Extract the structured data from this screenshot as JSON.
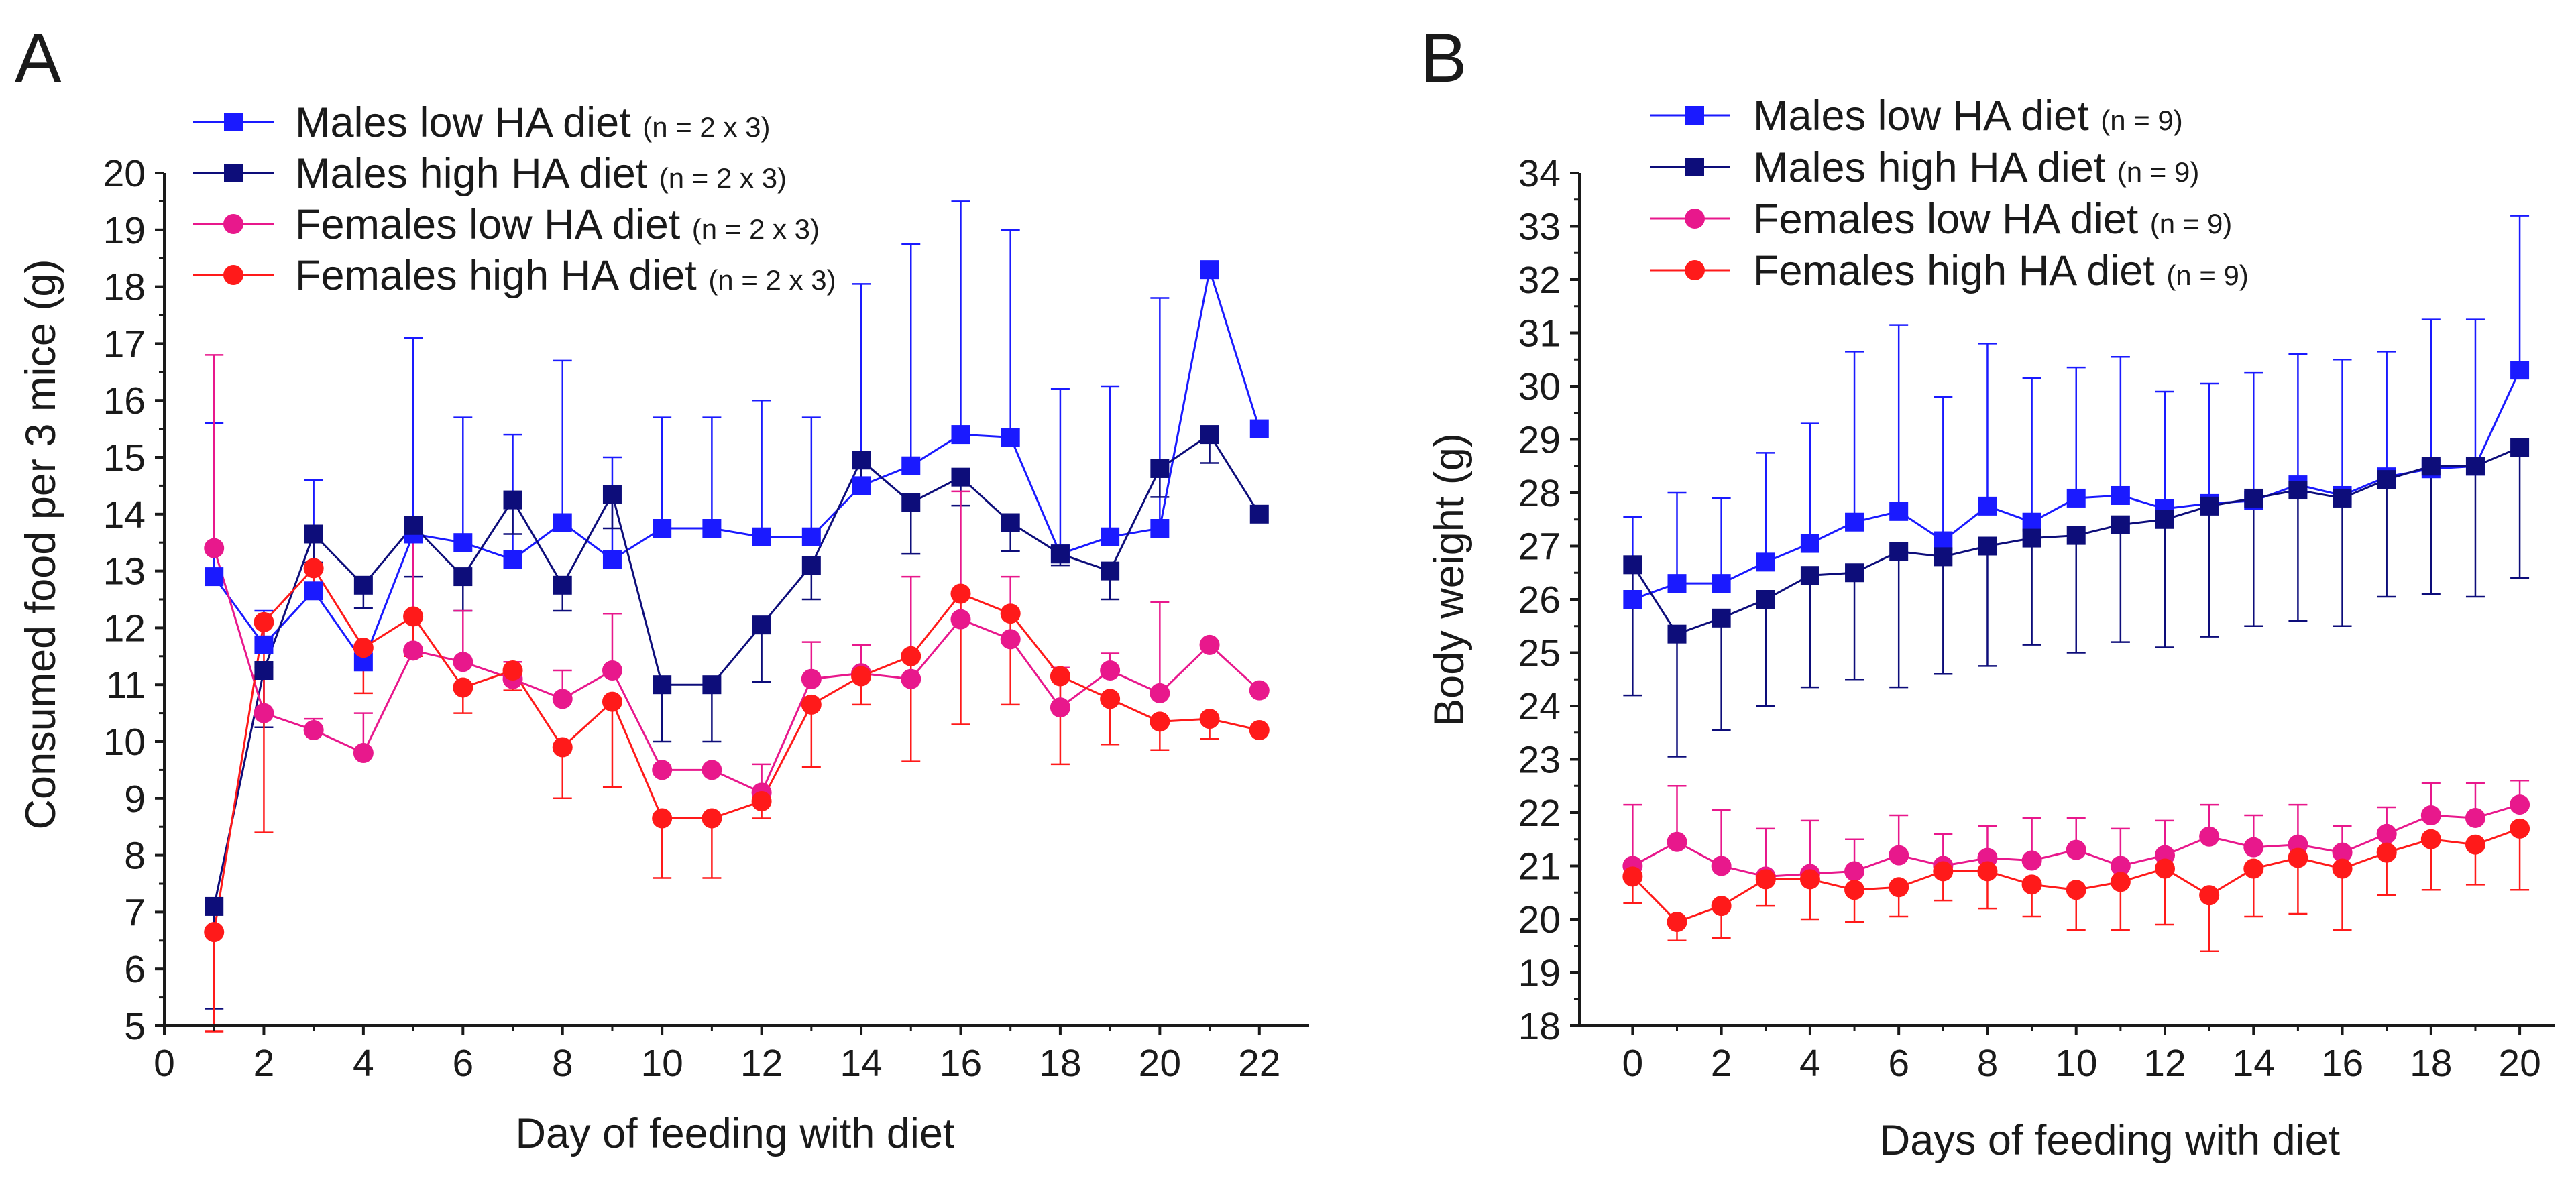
{
  "chart_data": [
    {
      "panel": "A",
      "type": "line",
      "xlabel": "Day of feeding with diet",
      "ylabel": "Consumed food per 3 mice (g)",
      "xlim": [
        0,
        23
      ],
      "ylim": [
        5,
        20
      ],
      "xticks": [
        0,
        2,
        4,
        6,
        8,
        10,
        12,
        14,
        16,
        18,
        20,
        22
      ],
      "yticks": [
        5,
        6,
        7,
        8,
        9,
        10,
        11,
        12,
        13,
        14,
        15,
        16,
        17,
        18,
        19,
        20
      ],
      "x": [
        1,
        2,
        3,
        4,
        5,
        6,
        7,
        8,
        9,
        10,
        11,
        12,
        13,
        14,
        15,
        16,
        17,
        18,
        19,
        20,
        21,
        22
      ],
      "series": [
        {
          "name": "Males low HA diet",
          "note": "(n = 2 x 3)",
          "marker": "square",
          "color": "#1a1aff",
          "values": [
            12.9,
            11.7,
            12.65,
            11.4,
            13.65,
            13.5,
            13.2,
            13.85,
            13.2,
            13.75,
            13.75,
            13.6,
            13.6,
            14.5,
            14.85,
            15.4,
            15.35,
            13.3,
            13.6,
            13.75,
            18.3,
            15.5
          ],
          "error": [
            2.7,
            0.6,
            1.95,
            0.3,
            3.45,
            2.2,
            2.2,
            2.85,
            1.8,
            1.95,
            1.95,
            2.4,
            2.1,
            3.55,
            3.9,
            4.1,
            3.65,
            2.9,
            2.65,
            4.05,
            0,
            0
          ]
        },
        {
          "name": "Males high HA diet",
          "note": "(n = 2 x 3)",
          "marker": "square",
          "color": "#0d0d7a",
          "values": [
            7.1,
            11.25,
            13.65,
            12.75,
            13.8,
            12.9,
            14.25,
            12.75,
            14.35,
            11.0,
            11.0,
            12.05,
            13.1,
            14.95,
            14.2,
            14.65,
            13.85,
            13.3,
            13.0,
            14.8,
            15.4,
            14.0
          ],
          "error": [
            1.8,
            1.0,
            0.5,
            0.4,
            0.9,
            0.6,
            0.6,
            0.45,
            0.6,
            1.0,
            1.0,
            1.0,
            0.6,
            0.4,
            0.9,
            0.5,
            0.5,
            0.2,
            0.5,
            0.5,
            0.5,
            0
          ]
        },
        {
          "name": "Females low HA diet",
          "note": "(n = 2 x 3)",
          "marker": "circle",
          "color": "#e8188c",
          "values": [
            13.4,
            10.5,
            10.2,
            9.8,
            11.6,
            11.4,
            11.1,
            10.75,
            11.25,
            9.5,
            9.5,
            9.1,
            11.1,
            11.2,
            11.1,
            12.15,
            11.8,
            10.6,
            11.25,
            10.85,
            11.7,
            10.9
          ],
          "error": [
            3.4,
            0.8,
            0.2,
            0.7,
            2.0,
            0.9,
            0.3,
            0.5,
            1.0,
            0,
            0,
            0.5,
            0.65,
            0.5,
            1.8,
            2.25,
            1.1,
            0.7,
            0.3,
            1.6,
            0,
            0
          ]
        },
        {
          "name": "Females high HA diet",
          "note": "(n = 2 x 3)",
          "marker": "circle",
          "color": "#ff1a1a",
          "values": [
            6.65,
            12.1,
            13.05,
            11.65,
            12.2,
            10.95,
            11.25,
            9.9,
            10.7,
            8.65,
            8.65,
            8.95,
            10.65,
            11.15,
            11.5,
            12.6,
            12.25,
            11.15,
            10.75,
            10.35,
            10.4,
            10.2
          ],
          "error": [
            1.75,
            3.7,
            0.3,
            0.8,
            0.7,
            0.45,
            0.35,
            0.9,
            1.5,
            1.05,
            1.05,
            0.3,
            1.1,
            0.5,
            1.85,
            2.3,
            1.6,
            1.55,
            0.8,
            0.5,
            0.35,
            0
          ]
        }
      ]
    },
    {
      "panel": "B",
      "type": "line",
      "xlabel": "Days of feeding with diet",
      "ylabel": "Body weight (g)",
      "xlim": [
        -1.2,
        20.8
      ],
      "ylim": [
        18,
        34
      ],
      "xticks": [
        0,
        2,
        4,
        6,
        8,
        10,
        12,
        14,
        16,
        18,
        20
      ],
      "yticks": [
        18,
        19,
        20,
        21,
        22,
        23,
        24,
        25,
        26,
        27,
        28,
        29,
        30,
        31,
        32,
        33,
        34
      ],
      "x": [
        0,
        1,
        2,
        3,
        4,
        5,
        6,
        7,
        8,
        9,
        10,
        11,
        12,
        13,
        14,
        15,
        16,
        17,
        18,
        19,
        20
      ],
      "series": [
        {
          "name": "Males low HA diet",
          "note": "(n = 9)",
          "marker": "square",
          "color": "#1a1aff",
          "values": [
            26.0,
            26.3,
            26.3,
            26.7,
            27.05,
            27.45,
            27.65,
            27.1,
            27.75,
            27.45,
            27.9,
            27.95,
            27.7,
            27.8,
            27.85,
            28.15,
            27.95,
            28.3,
            28.45,
            28.5,
            30.3
          ],
          "error": [
            1.55,
            1.7,
            1.6,
            2.05,
            2.25,
            3.2,
            3.5,
            2.7,
            3.05,
            2.7,
            2.45,
            2.6,
            2.2,
            2.25,
            2.4,
            2.45,
            2.55,
            2.35,
            2.8,
            2.75,
            2.9
          ]
        },
        {
          "name": "Males high HA diet",
          "note": "(n = 9)",
          "marker": "square",
          "color": "#0d0d7a",
          "values": [
            26.65,
            25.35,
            25.65,
            26.0,
            26.45,
            26.5,
            26.9,
            26.8,
            27.0,
            27.15,
            27.2,
            27.4,
            27.5,
            27.75,
            27.9,
            28.05,
            27.9,
            28.25,
            28.5,
            28.5,
            28.85
          ],
          "error": [
            2.45,
            2.3,
            2.1,
            2.0,
            2.1,
            2.0,
            2.55,
            2.2,
            2.25,
            2.0,
            2.2,
            2.2,
            2.4,
            2.45,
            2.4,
            2.45,
            2.4,
            2.2,
            2.4,
            2.45,
            2.45
          ]
        },
        {
          "name": "Females low HA diet",
          "note": "(n = 9)",
          "marker": "circle",
          "color": "#e8188c",
          "values": [
            21.0,
            21.45,
            21.0,
            20.8,
            20.85,
            20.9,
            21.2,
            21.0,
            21.15,
            21.1,
            21.3,
            21.0,
            21.2,
            21.55,
            21.35,
            21.4,
            21.25,
            21.6,
            21.95,
            21.9,
            22.15
          ],
          "error": [
            1.15,
            1.05,
            1.05,
            0.9,
            1.0,
            0.6,
            0.75,
            0.6,
            0.6,
            0.8,
            0.6,
            0.7,
            0.65,
            0.6,
            0.6,
            0.75,
            0.5,
            0.5,
            0.6,
            0.65,
            0.45
          ]
        },
        {
          "name": "Females high HA diet",
          "note": "(n = 9)",
          "marker": "circle",
          "color": "#ff1a1a",
          "values": [
            20.8,
            19.95,
            20.25,
            20.75,
            20.75,
            20.55,
            20.6,
            20.9,
            20.9,
            20.65,
            20.55,
            20.7,
            20.95,
            20.45,
            20.95,
            21.15,
            20.95,
            21.25,
            21.5,
            21.4,
            21.7
          ],
          "error": [
            0.5,
            0.35,
            0.6,
            0.5,
            0.75,
            0.6,
            0.55,
            0.55,
            0.7,
            0.6,
            0.75,
            0.9,
            1.05,
            1.05,
            0.9,
            1.05,
            1.15,
            0.8,
            0.95,
            0.75,
            1.15
          ]
        }
      ]
    }
  ]
}
